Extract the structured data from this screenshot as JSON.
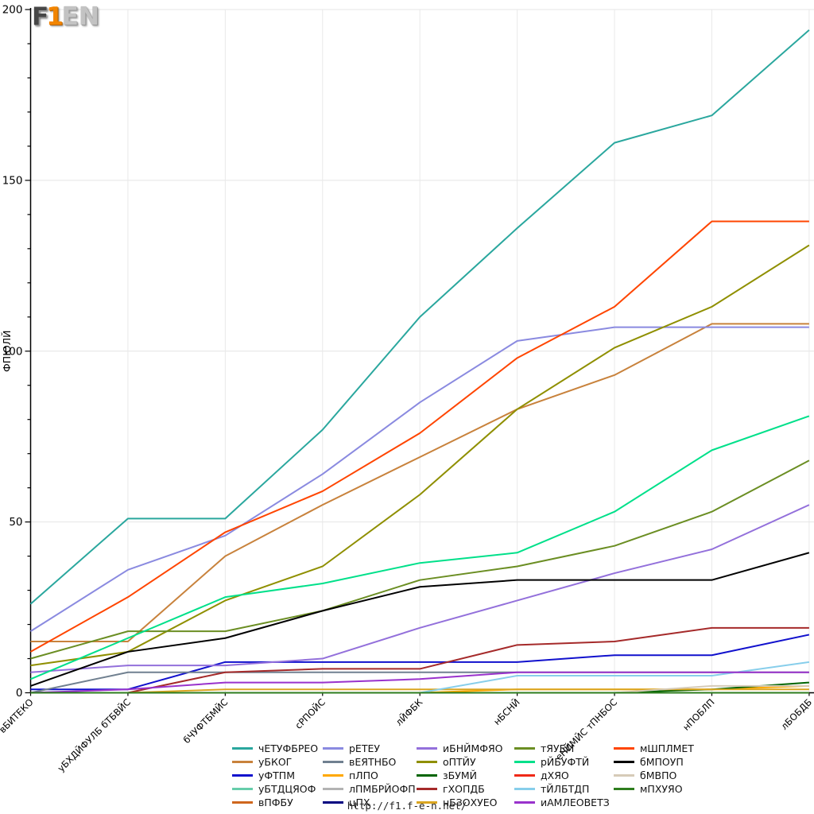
{
  "logo": {
    "f": "F",
    "one": "1",
    "en": "EN"
  },
  "footer": {
    "url": "http://f1.f-e-n.net/"
  },
  "chart_data": {
    "type": "line",
    "title": "",
    "xlabel": "",
    "ylabel": "ФПЮЛЙ",
    "ylim": [
      0,
      200
    ],
    "yticks": [
      0,
      50,
      100,
      150,
      200
    ],
    "minor_tick_step": 10,
    "grid": true,
    "legend_position": "bottom",
    "categories": [
      "вБИТЕКО",
      "уБХДЙФУЛБ бТБВЙС",
      "бЧУФТБМЙС",
      "сРПОЙС",
      "лЙФБК",
      "нБСНЙ",
      "еНЙМЙС тПНБОС",
      "нПОБЛП",
      "лБОБДБ"
    ],
    "series": [
      {
        "name": "чЕТУФБРЕО",
        "color": "#2aa79e",
        "values": [
          26,
          51,
          51,
          77,
          110,
          136,
          161,
          169,
          194
        ]
      },
      {
        "name": "уБКОГ",
        "color": "#c8823c",
        "values": [
          15,
          15,
          40,
          55,
          69,
          83,
          93,
          108,
          108
        ]
      },
      {
        "name": "уФТПМ",
        "color": "#1111cd",
        "values": [
          1,
          1,
          9,
          9,
          9,
          9,
          11,
          11,
          17
        ]
      },
      {
        "name": "уБТДЦЯОФ",
        "color": "#66cdaa",
        "values": [
          0,
          0,
          0,
          0,
          0,
          0,
          0,
          0,
          0
        ]
      },
      {
        "name": "вПФБУ",
        "color": "#cf661d",
        "values": [
          0,
          0,
          0,
          0,
          0,
          0,
          0,
          0,
          0
        ]
      },
      {
        "name": "рЕТЕУ",
        "color": "#8a8ae0",
        "values": [
          18,
          36,
          46,
          64,
          85,
          103,
          107,
          107,
          107
        ]
      },
      {
        "name": "вЕЯТНБО",
        "color": "#708090",
        "values": [
          0,
          6,
          6,
          6,
          6,
          6,
          6,
          6,
          6
        ]
      },
      {
        "name": "пЛПО",
        "color": "#ffa800",
        "values": [
          0,
          0,
          0,
          0,
          0,
          1,
          1,
          1,
          2
        ]
      },
      {
        "name": "лПМБРЙОФП",
        "color": "#b3b3b3",
        "values": [
          0,
          0,
          0,
          0,
          0,
          0,
          0,
          0,
          0
        ]
      },
      {
        "name": "цПХ",
        "color": "#000080",
        "values": [
          0,
          0,
          0,
          0,
          0,
          0,
          0,
          0,
          0
        ]
      },
      {
        "name": "иБНЙМФЯО",
        "color": "#9370db",
        "values": [
          6,
          8,
          8,
          10,
          19,
          27,
          35,
          42,
          55
        ]
      },
      {
        "name": "оПТЙУ",
        "color": "#8f8f00",
        "values": [
          8,
          12,
          27,
          37,
          58,
          83,
          101,
          113,
          131
        ]
      },
      {
        "name": "зБУМЙ",
        "color": "#006400",
        "values": [
          0,
          0,
          0,
          0,
          0,
          0,
          0,
          1,
          3
        ]
      },
      {
        "name": "гХОПДБ",
        "color": "#a52a2a",
        "values": [
          0,
          0,
          6,
          7,
          7,
          14,
          15,
          19,
          19
        ]
      },
      {
        "name": "нБЗОХУЕО",
        "color": "#daa520",
        "values": [
          0,
          0,
          1,
          1,
          1,
          1,
          1,
          1,
          1
        ]
      },
      {
        "name": "тЯУЕМ",
        "color": "#6b8e23",
        "values": [
          10,
          18,
          18,
          24,
          33,
          37,
          43,
          53,
          68
        ]
      },
      {
        "name": "рЙБУФТЙ",
        "color": "#00e08a",
        "values": [
          4,
          16,
          28,
          32,
          38,
          41,
          53,
          71,
          81
        ]
      },
      {
        "name": "дХЯО",
        "color": "#ef2917",
        "values": [
          0,
          0,
          0,
          0,
          0,
          0,
          0,
          0,
          0
        ]
      },
      {
        "name": "тЙЛБТДП",
        "color": "#87ceeb",
        "values": [
          0,
          0,
          0,
          0,
          0,
          5,
          5,
          5,
          9
        ]
      },
      {
        "name": "иАМЛЕОВЕТЗ",
        "color": "#9932cc",
        "values": [
          0,
          1,
          3,
          3,
          4,
          6,
          6,
          6,
          6
        ]
      },
      {
        "name": "мШПЛМЕТ",
        "color": "#ff4500",
        "values": [
          12,
          28,
          47,
          59,
          76,
          98,
          113,
          138,
          138
        ]
      },
      {
        "name": "бМПОУП",
        "color": "#000000",
        "values": [
          2,
          12,
          16,
          24,
          31,
          33,
          33,
          33,
          41
        ]
      },
      {
        "name": "бМВПО",
        "color": "#d6cbb8",
        "values": [
          0,
          0,
          0,
          0,
          0,
          0,
          0,
          2,
          2
        ]
      },
      {
        "name": "мПХУЯО",
        "color": "#2e7d1e",
        "values": [
          0,
          0,
          0,
          0,
          0,
          0,
          0,
          0,
          0
        ]
      }
    ]
  }
}
